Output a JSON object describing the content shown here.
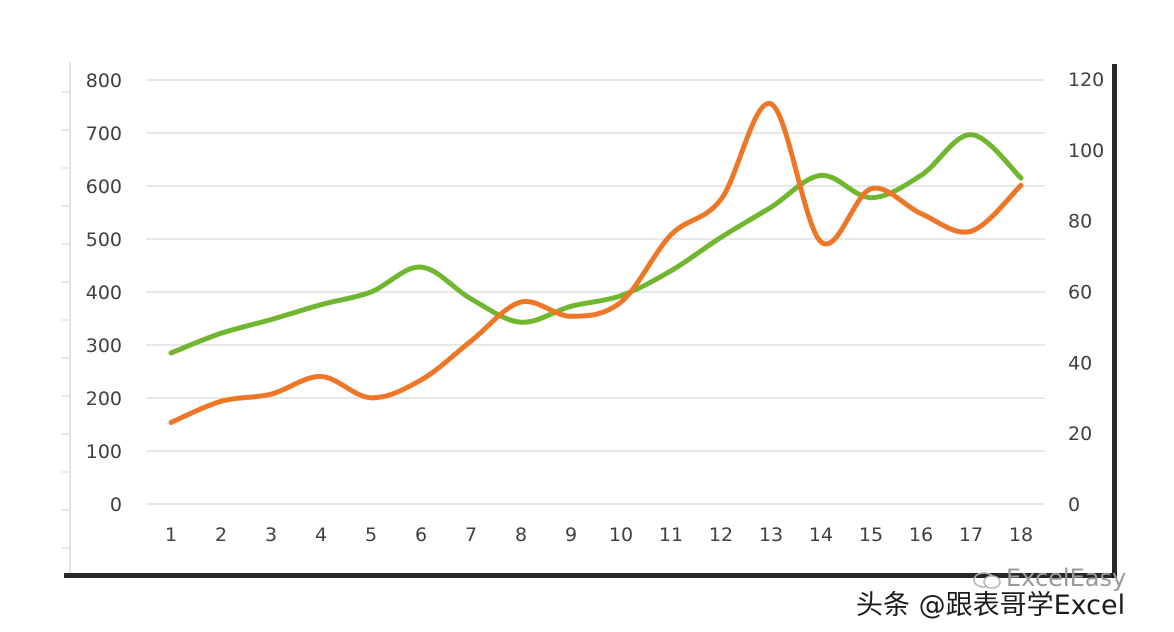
{
  "chart_data": {
    "type": "line",
    "x": [
      1,
      2,
      3,
      4,
      5,
      6,
      7,
      8,
      9,
      10,
      11,
      12,
      13,
      14,
      15,
      16,
      17,
      18
    ],
    "categories": [
      "1",
      "2",
      "3",
      "4",
      "5",
      "6",
      "7",
      "8",
      "9",
      "10",
      "11",
      "12",
      "13",
      "14",
      "15",
      "16",
      "17",
      "18"
    ],
    "series": [
      {
        "axis": "left",
        "color": "#70b62f",
        "smooth": true,
        "values": [
          285,
          322,
          348,
          376,
          400,
          447,
          387,
          343,
          373,
          393,
          440,
          503,
          560,
          620,
          578,
          620,
          697,
          615
        ]
      },
      {
        "axis": "right",
        "color": "#ee7727",
        "smooth": true,
        "values": [
          23,
          29,
          31,
          36,
          30,
          35,
          46,
          57,
          53,
          57,
          76,
          86,
          113,
          74,
          89,
          82,
          77,
          90
        ]
      }
    ],
    "y_left": {
      "range": [
        0,
        800
      ],
      "ticks": [
        "0",
        "100",
        "200",
        "300",
        "400",
        "500",
        "600",
        "700",
        "800"
      ]
    },
    "y_right": {
      "range": [
        0,
        120
      ],
      "ticks": [
        "0",
        "20",
        "40",
        "60",
        "80",
        "100",
        "120"
      ]
    },
    "grid": true,
    "legend": "none",
    "title": "",
    "xlabel": "",
    "ylabel": ""
  },
  "watermark": {
    "main": "头条 @跟表哥学Excel",
    "sub": "ExcelEasy"
  },
  "colors": {
    "grid": "#d9d9d9",
    "axis_text": "#404040",
    "frame_shadow": "#000000"
  }
}
